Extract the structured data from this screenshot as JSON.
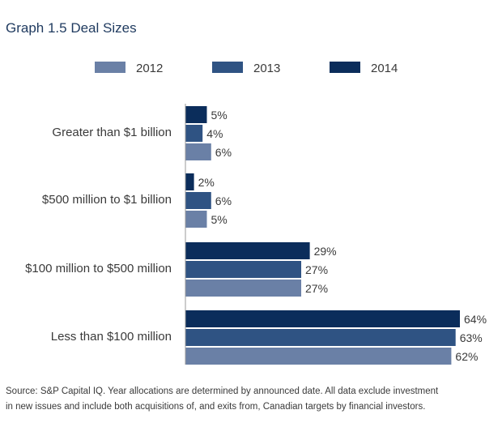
{
  "chart_data": {
    "type": "bar",
    "orientation": "horizontal",
    "title": "Graph 1.5  Deal Sizes",
    "categories": [
      "Greater than $1 billion",
      "$500 million to $1 billion",
      "$100 million to $500 million",
      "Less than $100 million"
    ],
    "series": [
      {
        "name": "2014",
        "color": "#0b2d5b",
        "values": [
          5,
          2,
          29,
          64
        ]
      },
      {
        "name": "2013",
        "color": "#2f5383",
        "values": [
          4,
          6,
          27,
          63
        ]
      },
      {
        "name": "2012",
        "color": "#6a80a6",
        "values": [
          6,
          5,
          27,
          62
        ]
      }
    ],
    "legend_order": [
      "2012",
      "2013",
      "2014"
    ],
    "value_suffix": "%",
    "xlim": [
      0,
      100
    ],
    "grid": false,
    "legend_position": "top",
    "source": [
      "Source: S&P Capital IQ. Year allocations are determined by announced date. All data exclude investment",
      "in new issues and include both acquisitions of, and exits from, Canadian targets by financial investors."
    ]
  }
}
